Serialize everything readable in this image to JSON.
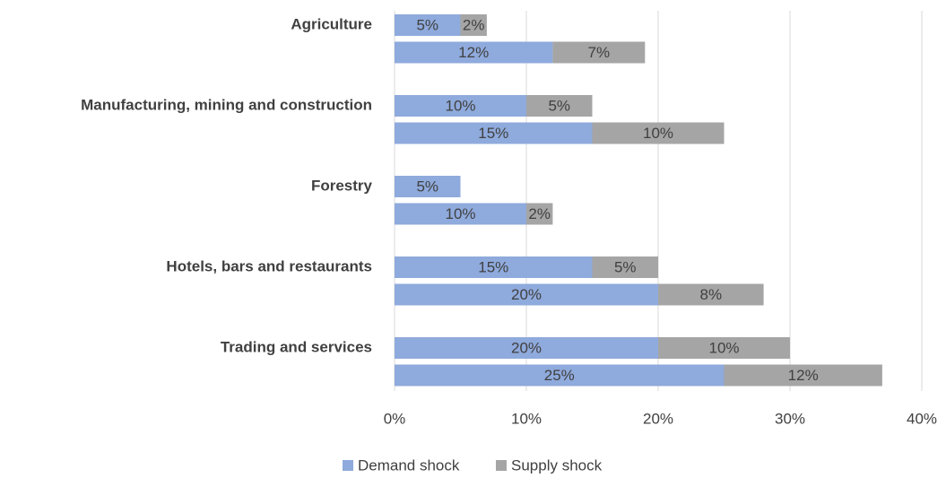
{
  "chart_data": {
    "type": "stacked-bar-horizontal",
    "categories": [
      "Agriculture",
      null,
      "Manufacturing, mining and  construction",
      null,
      "Forestry",
      null,
      "Hotels, bars and restaurants",
      null,
      "Trading and services",
      null
    ],
    "series": [
      {
        "name": "Demand shock",
        "color": "#8faadc",
        "values": [
          5,
          12,
          10,
          15,
          5,
          10,
          15,
          20,
          20,
          25
        ],
        "value_labels": [
          "5%",
          "12%",
          "10%",
          "15%",
          "5%",
          "10%",
          "15%",
          "20%",
          "20%",
          "25%"
        ]
      },
      {
        "name": "Supply shock",
        "color": "#a5a5a5",
        "values": [
          2,
          7,
          5,
          10,
          null,
          2,
          5,
          8,
          10,
          12
        ],
        "value_labels": [
          "2%",
          "7%",
          "5%",
          "10%",
          null,
          "2%",
          "5%",
          "8%",
          "10%",
          "12%"
        ]
      }
    ],
    "xlim": [
      0,
      40
    ],
    "xticks": [
      {
        "value": 0,
        "label": "0%"
      },
      {
        "value": 10,
        "label": "10%"
      },
      {
        "value": 20,
        "label": "20%"
      },
      {
        "value": 30,
        "label": "30%"
      },
      {
        "value": 40,
        "label": "40%"
      }
    ],
    "grid": true,
    "legend": "bottom"
  }
}
